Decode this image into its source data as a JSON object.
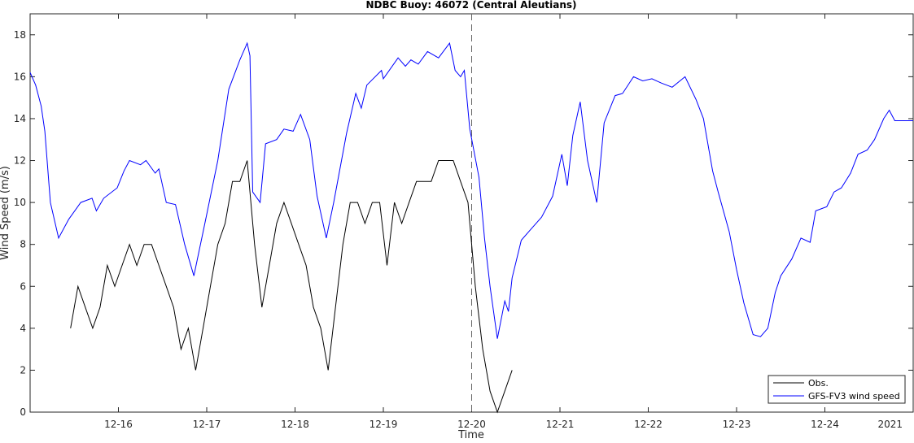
{
  "chart_data": {
    "type": "line",
    "title": "NDBC Buoy: 46072 (Central Aleutians)",
    "xlabel": "Time",
    "ylabel": "Wind Speed (m/s)",
    "x_year_label": "2021",
    "xlim": [
      "12-15 00:00",
      "12-25 00:00"
    ],
    "ylim": [
      0,
      19
    ],
    "yticks": [
      0,
      2,
      4,
      6,
      8,
      10,
      12,
      14,
      16,
      18
    ],
    "xticks": [
      "12-16",
      "12-17",
      "12-18",
      "12-19",
      "12-20",
      "12-21",
      "12-22",
      "12-23",
      "12-24"
    ],
    "grid": false,
    "legend_placement": "bottom-right",
    "vertical_marker": "12-20 00:00",
    "series": [
      {
        "name": "Obs.",
        "color": "#000000",
        "points": [
          [
            "12-15 11:00",
            4
          ],
          [
            "12-15 13:00",
            6
          ],
          [
            "12-15 15:00",
            5
          ],
          [
            "12-15 17:00",
            4
          ],
          [
            "12-15 19:00",
            5
          ],
          [
            "12-15 21:00",
            7
          ],
          [
            "12-15 23:00",
            6
          ],
          [
            "12-16 01:00",
            7
          ],
          [
            "12-16 03:00",
            8
          ],
          [
            "12-16 05:00",
            7
          ],
          [
            "12-16 07:00",
            8
          ],
          [
            "12-16 09:00",
            8
          ],
          [
            "12-16 11:00",
            7
          ],
          [
            "12-16 13:00",
            6
          ],
          [
            "12-16 15:00",
            5
          ],
          [
            "12-16 17:00",
            3
          ],
          [
            "12-16 19:00",
            4
          ],
          [
            "12-16 21:00",
            2
          ],
          [
            "12-16 23:00",
            4
          ],
          [
            "12-17 01:00",
            6
          ],
          [
            "12-17 03:00",
            8
          ],
          [
            "12-17 05:00",
            9
          ],
          [
            "12-17 07:00",
            11
          ],
          [
            "12-17 09:00",
            11
          ],
          [
            "12-17 11:00",
            12
          ],
          [
            "12-17 13:00",
            8
          ],
          [
            "12-17 15:00",
            5
          ],
          [
            "12-17 17:00",
            7
          ],
          [
            "12-17 19:00",
            9
          ],
          [
            "12-17 21:00",
            10
          ],
          [
            "12-17 23:00",
            9
          ],
          [
            "12-18 01:00",
            8
          ],
          [
            "12-18 03:00",
            7
          ],
          [
            "12-18 05:00",
            5
          ],
          [
            "12-18 07:00",
            4
          ],
          [
            "12-18 09:00",
            2
          ],
          [
            "12-18 11:00",
            5
          ],
          [
            "12-18 13:00",
            8
          ],
          [
            "12-18 15:00",
            10
          ],
          [
            "12-18 17:00",
            10
          ],
          [
            "12-18 19:00",
            9
          ],
          [
            "12-18 21:00",
            10
          ],
          [
            "12-18 23:00",
            10
          ],
          [
            "12-19 01:00",
            7
          ],
          [
            "12-19 03:00",
            10
          ],
          [
            "12-19 05:00",
            9
          ],
          [
            "12-19 07:00",
            10
          ],
          [
            "12-19 09:00",
            11
          ],
          [
            "12-19 11:00",
            11
          ],
          [
            "12-19 13:00",
            11
          ],
          [
            "12-19 15:00",
            12
          ],
          [
            "12-19 17:00",
            12
          ],
          [
            "12-19 19:00",
            12
          ],
          [
            "12-19 21:00",
            11
          ],
          [
            "12-19 23:00",
            10
          ],
          [
            "12-20 01:00",
            6
          ],
          [
            "12-20 03:00",
            3
          ],
          [
            "12-20 05:00",
            1
          ],
          [
            "12-20 07:00",
            0
          ],
          [
            "12-20 09:00",
            1
          ],
          [
            "12-20 11:00",
            2
          ]
        ]
      },
      {
        "name": "GFS-FV3 wind speed",
        "color": "#0000ff",
        "points": [
          [
            "12-15 00:00",
            16.2
          ],
          [
            "12-15 01:30",
            15.6
          ],
          [
            "12-15 03:00",
            14.6
          ],
          [
            "12-15 04:00",
            13.4
          ],
          [
            "12-15 05:30",
            10.0
          ],
          [
            "12-15 07:45",
            8.3
          ],
          [
            "12-15 10:30",
            9.2
          ],
          [
            "12-15 13:45",
            10.0
          ],
          [
            "12-15 16:50",
            10.2
          ],
          [
            "12-15 18:00",
            9.6
          ],
          [
            "12-15 20:00",
            10.2
          ],
          [
            "12-15 23:40",
            10.7
          ],
          [
            "12-16 01:30",
            11.5
          ],
          [
            "12-16 03:00",
            12.0
          ],
          [
            "12-16 06:00",
            11.8
          ],
          [
            "12-16 07:30",
            12.0
          ],
          [
            "12-16 10:00",
            11.4
          ],
          [
            "12-16 11:00",
            11.6
          ],
          [
            "12-16 13:00",
            10.0
          ],
          [
            "12-16 15:30",
            9.9
          ],
          [
            "12-16 18:00",
            8.0
          ],
          [
            "12-16 20:30",
            6.5
          ],
          [
            "12-16 23:30",
            9.0
          ],
          [
            "12-17 03:00",
            12.0
          ],
          [
            "12-17 06:00",
            15.4
          ],
          [
            "12-17 09:00",
            16.8
          ],
          [
            "12-17 11:00",
            17.6
          ],
          [
            "12-17 11:45",
            17.0
          ],
          [
            "12-17 12:30",
            10.5
          ],
          [
            "12-17 14:30",
            10.0
          ],
          [
            "12-17 16:00",
            12.8
          ],
          [
            "12-17 19:00",
            13.0
          ],
          [
            "12-17 21:00",
            13.5
          ],
          [
            "12-17 23:30",
            13.4
          ],
          [
            "12-18 01:30",
            14.2
          ],
          [
            "12-18 04:00",
            13.0
          ],
          [
            "12-18 06:00",
            10.3
          ],
          [
            "12-18 08:30",
            8.3
          ],
          [
            "12-18 10:30",
            10.0
          ],
          [
            "12-18 14:00",
            13.3
          ],
          [
            "12-18 16:30",
            15.2
          ],
          [
            "12-18 18:00",
            14.5
          ],
          [
            "12-18 19:30",
            15.6
          ],
          [
            "12-18 23:30",
            16.3
          ],
          [
            "12-19 00:00",
            15.9
          ],
          [
            "12-19 04:00",
            16.9
          ],
          [
            "12-19 06:00",
            16.5
          ],
          [
            "12-19 07:30",
            16.8
          ],
          [
            "12-19 09:30",
            16.6
          ],
          [
            "12-19 12:00",
            17.2
          ],
          [
            "12-19 15:00",
            16.9
          ],
          [
            "12-19 18:00",
            17.6
          ],
          [
            "12-19 19:30",
            16.3
          ],
          [
            "12-19 21:00",
            16.0
          ],
          [
            "12-19 22:00",
            16.3
          ],
          [
            "12-19 23:30",
            13.5
          ],
          [
            "12-20 02:00",
            11.2
          ],
          [
            "12-20 03:30",
            8.3
          ],
          [
            "12-20 05:00",
            6.0
          ],
          [
            "12-20 07:00",
            3.5
          ],
          [
            "12-20 09:00",
            5.3
          ],
          [
            "12-20 10:00",
            4.8
          ],
          [
            "12-20 11:00",
            6.4
          ],
          [
            "12-20 13:30",
            8.2
          ],
          [
            "12-20 16:00",
            8.7
          ],
          [
            "12-20 19:00",
            9.3
          ],
          [
            "12-20 22:00",
            10.3
          ],
          [
            "12-21 00:30",
            12.3
          ],
          [
            "12-21 02:00",
            10.8
          ],
          [
            "12-21 03:30",
            13.2
          ],
          [
            "12-21 05:30",
            14.8
          ],
          [
            "12-21 07:30",
            12.0
          ],
          [
            "12-21 10:00",
            10.0
          ],
          [
            "12-21 12:00",
            13.8
          ],
          [
            "12-21 15:00",
            15.1
          ],
          [
            "12-21 17:00",
            15.2
          ],
          [
            "12-21 20:00",
            16.0
          ],
          [
            "12-21 22:30",
            15.8
          ],
          [
            "12-22 01:00",
            15.9
          ],
          [
            "12-22 03:30",
            15.7
          ],
          [
            "12-22 06:30",
            15.5
          ],
          [
            "12-22 10:00",
            16.0
          ],
          [
            "12-22 13:00",
            14.9
          ],
          [
            "12-22 15:00",
            14.0
          ],
          [
            "12-22 17:30",
            11.5
          ],
          [
            "12-22 19:00",
            10.5
          ],
          [
            "12-22 22:00",
            8.6
          ],
          [
            "12-23 00:00",
            6.8
          ],
          [
            "12-23 02:00",
            5.2
          ],
          [
            "12-23 04:30",
            3.7
          ],
          [
            "12-23 06:30",
            3.6
          ],
          [
            "12-23 08:30",
            4.0
          ],
          [
            "12-23 10:30",
            5.7
          ],
          [
            "12-23 12:00",
            6.5
          ],
          [
            "12-23 15:00",
            7.3
          ],
          [
            "12-23 17:30",
            8.3
          ],
          [
            "12-23 20:00",
            8.1
          ],
          [
            "12-23 21:30",
            9.6
          ],
          [
            "12-24 00:30",
            9.8
          ],
          [
            "12-24 02:30",
            10.5
          ],
          [
            "12-24 04:30",
            10.7
          ],
          [
            "12-24 07:00",
            11.4
          ],
          [
            "12-24 09:00",
            12.3
          ],
          [
            "12-24 11:30",
            12.5
          ],
          [
            "12-24 13:30",
            13.0
          ],
          [
            "12-24 16:00",
            14.0
          ],
          [
            "12-24 17:30",
            14.4
          ],
          [
            "12-24 19:00",
            13.9
          ],
          [
            "12-24 21:30",
            13.9
          ],
          [
            "12-25 00:00",
            13.9
          ]
        ]
      }
    ]
  }
}
